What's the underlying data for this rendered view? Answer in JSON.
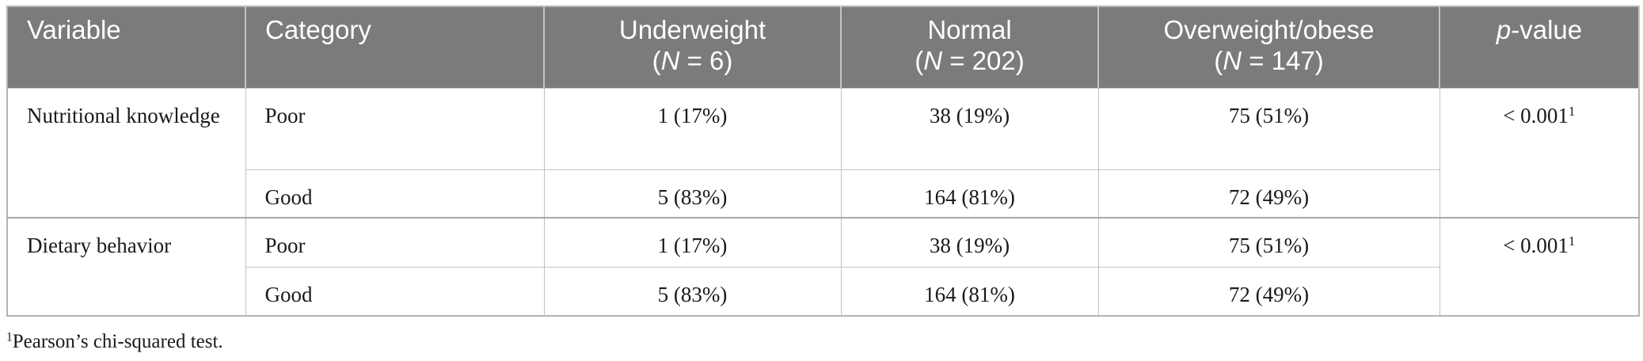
{
  "table": {
    "headers": {
      "variable": "Variable",
      "category": "Category",
      "underweight": {
        "label": "Underweight",
        "n_prefix": "(",
        "n_symbol": "N",
        "n_value": " = 6)"
      },
      "normal": {
        "label": "Normal",
        "n_prefix": "(",
        "n_symbol": "N",
        "n_value": " = 202)"
      },
      "overweight": {
        "label": "Overweight/obese",
        "n_prefix": "(",
        "n_symbol": "N",
        "n_value": " = 147)"
      },
      "pvalue": {
        "p": "p",
        "rest": "-value"
      }
    },
    "groups": [
      {
        "variable": "Nutritional knowledge",
        "p_value": "< 0.001",
        "p_note": "1",
        "rows": [
          {
            "category": "Poor",
            "underweight": "1 (17%)",
            "normal": "38 (19%)",
            "overweight": "75 (51%)"
          },
          {
            "category": "Good",
            "underweight": "5 (83%)",
            "normal": "164 (81%)",
            "overweight": "72 (49%)"
          }
        ]
      },
      {
        "variable": "Dietary behavior",
        "p_value": "< 0.001",
        "p_note": "1",
        "rows": [
          {
            "category": "Poor",
            "underweight": "1 (17%)",
            "normal": "38 (19%)",
            "overweight": "75 (51%)"
          },
          {
            "category": "Good",
            "underweight": "5 (83%)",
            "normal": "164 (81%)",
            "overweight": "72 (49%)"
          }
        ]
      }
    ]
  },
  "footnote": {
    "marker": "1",
    "text": "Pearson’s chi-squared test."
  },
  "colors": {
    "header_bg": "#7b7b7b",
    "header_text": "#ffffff",
    "border": "#b4b4b4",
    "body_text": "#1a1a1a"
  }
}
